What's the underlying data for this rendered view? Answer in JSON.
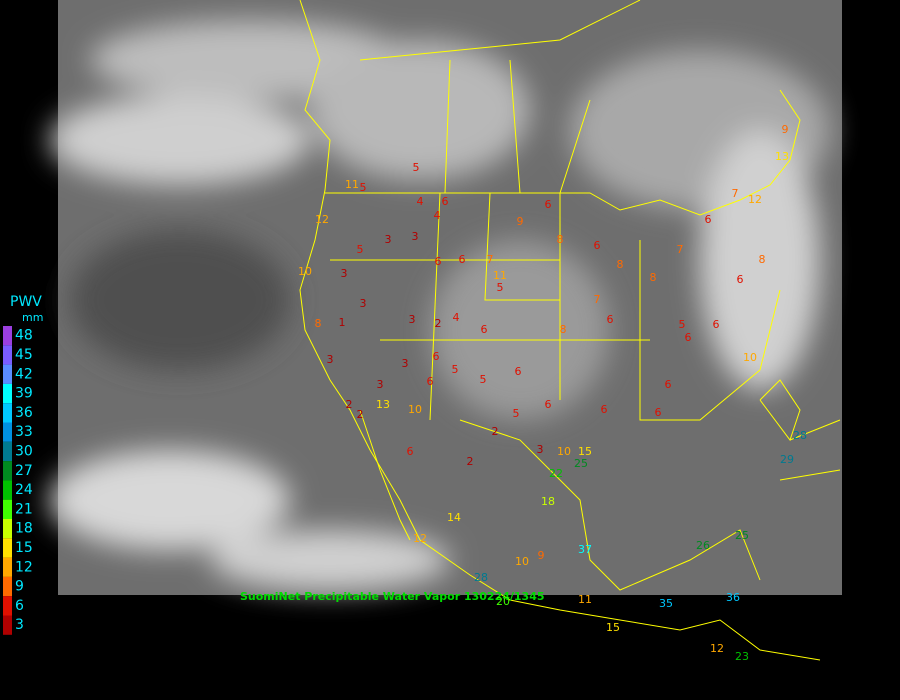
{
  "legend": {
    "title": "PWV",
    "unit": "mm",
    "levels": [
      48,
      45,
      42,
      39,
      36,
      33,
      30,
      27,
      24,
      21,
      18,
      15,
      12,
      9,
      6,
      3
    ],
    "colors": [
      "#9b3fe0",
      "#7a5cff",
      "#5a8cff",
      "#00ffff",
      "#00c8ff",
      "#0090e0",
      "#007a90",
      "#008a20",
      "#00c000",
      "#40ff00",
      "#c8ff00",
      "#ffe000",
      "#ffa800",
      "#ff6a00",
      "#e01000",
      "#b00000"
    ]
  },
  "caption": "SuomiNet Precipitable Water Vapor 130224/1345",
  "stations": [
    5,
    5,
    4,
    4,
    6,
    3,
    3,
    6,
    5,
    3,
    3,
    1,
    8,
    3,
    2,
    3,
    3,
    2,
    4,
    6,
    5,
    6,
    7,
    11,
    9,
    6,
    8,
    6,
    8,
    8,
    7,
    6,
    6,
    8,
    7,
    8,
    6,
    5,
    6,
    6,
    10,
    6,
    6,
    6,
    6,
    6,
    5,
    2,
    2,
    6,
    5,
    5,
    3,
    10,
    15,
    22,
    25,
    18,
    14,
    12,
    9,
    10,
    37,
    28,
    20,
    11,
    15,
    35,
    26,
    25,
    36,
    12,
    23,
    9,
    13,
    12,
    7,
    29,
    28,
    10,
    3,
    6,
    6,
    13,
    2,
    10,
    12,
    11
  ]
}
